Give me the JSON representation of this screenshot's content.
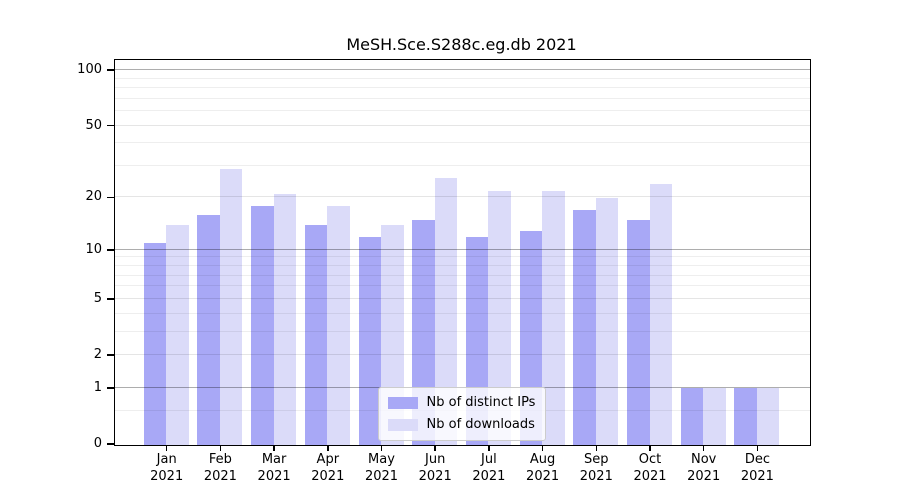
{
  "chart_data": {
    "type": "bar",
    "title": "MeSH.Sce.S288c.eg.db 2021",
    "categories": [
      "Jan",
      "Feb",
      "Mar",
      "Apr",
      "May",
      "Jun",
      "Jul",
      "Aug",
      "Sep",
      "Oct",
      "Nov",
      "Dec"
    ],
    "category_year": "2021",
    "series": [
      {
        "name": "Nb of distinct IPs",
        "color": "#a8a8f6",
        "values": [
          11,
          16,
          18,
          14,
          12,
          15,
          12,
          13,
          17,
          15,
          1,
          1
        ]
      },
      {
        "name": "Nb of downloads",
        "color": "#dbdbf9",
        "values": [
          14,
          29,
          21,
          18,
          14,
          26,
          22,
          22,
          20,
          24,
          1,
          1
        ]
      }
    ],
    "scale": "log1p",
    "ylim": [
      0,
      100
    ],
    "yticks": [
      0,
      1,
      2,
      5,
      10,
      20,
      50,
      100
    ],
    "major_gridlines": [
      1,
      10,
      100
    ],
    "mid_gridlines": [
      2,
      5,
      20,
      50
    ],
    "minor_gridlines": [
      0.5,
      3,
      4,
      6,
      7,
      8,
      9,
      30,
      40,
      60,
      70,
      80,
      90
    ],
    "grid": "on",
    "legend_position": "lower-center",
    "xlabel": "",
    "ylabel": ""
  }
}
